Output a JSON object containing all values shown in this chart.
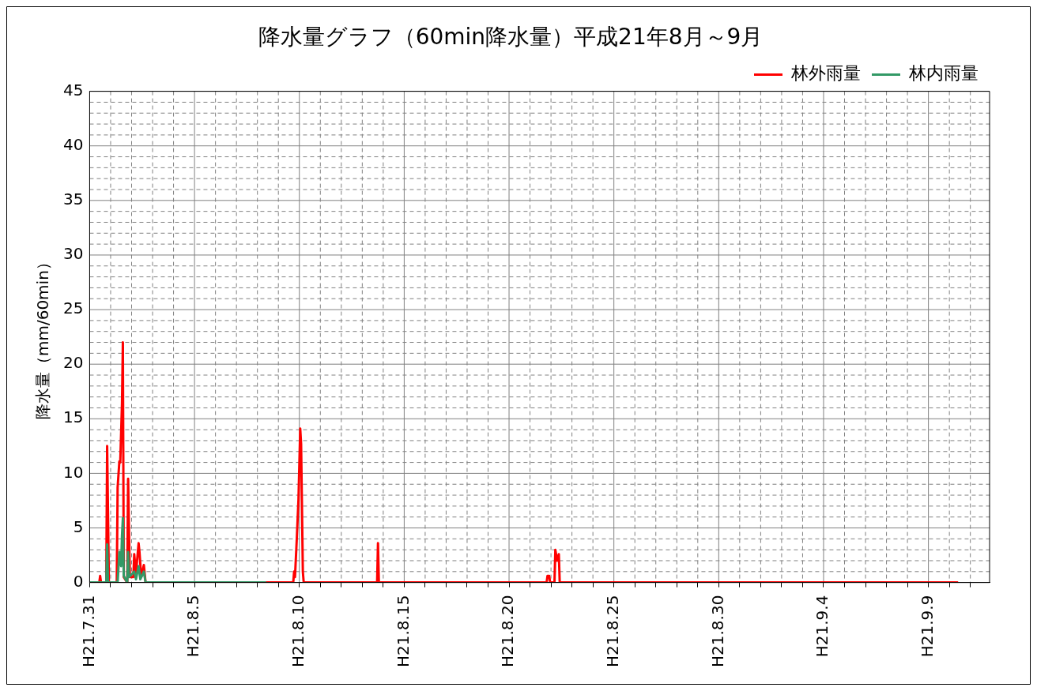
{
  "chart_data": {
    "type": "line",
    "title": "降水量グラフ（60min降水量）平成21年8月～9月",
    "ylabel": "降水量（mm/60min）",
    "xlim": [
      "--07-31T00:00",
      "--09-11T22:00"
    ],
    "xticks": [
      {
        "value": "--07-31",
        "label": "H21.7.31"
      },
      {
        "value": "--08-01",
        "label": null
      },
      {
        "value": "--08-02",
        "label": null
      },
      {
        "value": "--08-03",
        "label": null
      },
      {
        "value": "--08-04",
        "label": null
      },
      {
        "value": "--08-05",
        "label": "H21.8.5"
      },
      {
        "value": "--08-06",
        "label": null
      },
      {
        "value": "--08-07",
        "label": null
      },
      {
        "value": "--08-08",
        "label": null
      },
      {
        "value": "--08-09",
        "label": null
      },
      {
        "value": "--08-10",
        "label": "H21.8.10"
      },
      {
        "value": "--08-11",
        "label": null
      },
      {
        "value": "--08-12",
        "label": null
      },
      {
        "value": "--08-13",
        "label": null
      },
      {
        "value": "--08-14",
        "label": null
      },
      {
        "value": "--08-15",
        "label": "H21.8.15"
      },
      {
        "value": "--08-16",
        "label": null
      },
      {
        "value": "--08-17",
        "label": null
      },
      {
        "value": "--08-18",
        "label": null
      },
      {
        "value": "--08-19",
        "label": null
      },
      {
        "value": "--08-20",
        "label": "H21.8.20"
      },
      {
        "value": "--08-21",
        "label": null
      },
      {
        "value": "--08-22",
        "label": null
      },
      {
        "value": "--08-23",
        "label": null
      },
      {
        "value": "--08-24",
        "label": null
      },
      {
        "value": "--08-25",
        "label": "H21.8.25"
      },
      {
        "value": "--08-26",
        "label": null
      },
      {
        "value": "--08-27",
        "label": null
      },
      {
        "value": "--08-28",
        "label": null
      },
      {
        "value": "--08-29",
        "label": null
      },
      {
        "value": "--08-30",
        "label": "H21.8.30"
      },
      {
        "value": "--08-31",
        "label": null
      },
      {
        "value": "--09-01",
        "label": null
      },
      {
        "value": "--09-02",
        "label": null
      },
      {
        "value": "--09-03",
        "label": null
      },
      {
        "value": "--09-04",
        "label": "H21.9.4"
      },
      {
        "value": "--09-05",
        "label": null
      },
      {
        "value": "--09-06",
        "label": null
      },
      {
        "value": "--09-07",
        "label": null
      },
      {
        "value": "--09-08",
        "label": null
      },
      {
        "value": "--09-09",
        "label": "H21.9.9"
      },
      {
        "value": "--09-10",
        "label": null
      },
      {
        "value": "--09-11",
        "label": null
      }
    ],
    "ylim": [
      0,
      45
    ],
    "yticks": [
      0,
      {
        "value": 1,
        "label": null
      },
      {
        "value": 2,
        "label": null
      },
      {
        "value": 3,
        "label": null
      },
      {
        "value": 4,
        "label": null
      },
      5,
      {
        "value": 6,
        "label": null
      },
      {
        "value": 7,
        "label": null
      },
      {
        "value": 8,
        "label": null
      },
      {
        "value": 9,
        "label": null
      },
      10,
      {
        "value": 11,
        "label": null
      },
      {
        "value": 12,
        "label": null
      },
      {
        "value": 13,
        "label": null
      },
      {
        "value": 14,
        "label": null
      },
      15,
      {
        "value": 16,
        "label": null
      },
      {
        "value": 17,
        "label": null
      },
      {
        "value": 18,
        "label": null
      },
      {
        "value": 19,
        "label": null
      },
      20,
      {
        "value": 21,
        "label": null
      },
      {
        "value": 22,
        "label": null
      },
      {
        "value": 23,
        "label": null
      },
      {
        "value": 24,
        "label": null
      },
      25,
      {
        "value": 26,
        "label": null
      },
      {
        "value": 27,
        "label": null
      },
      {
        "value": 28,
        "label": null
      },
      {
        "value": 29,
        "label": null
      },
      30,
      {
        "value": 31,
        "label": null
      },
      {
        "value": 32,
        "label": null
      },
      {
        "value": 33,
        "label": null
      },
      {
        "value": 34,
        "label": null
      },
      35,
      {
        "value": 36,
        "label": null
      },
      {
        "value": 37,
        "label": null
      },
      {
        "value": 38,
        "label": null
      },
      {
        "value": 39,
        "label": null
      },
      40,
      {
        "value": 41,
        "label": null
      },
      {
        "value": 42,
        "label": null
      },
      {
        "value": 43,
        "label": null
      },
      {
        "value": 44,
        "label": null
      },
      45
    ],
    "grid": true,
    "legend": "top right",
    "marker": "none",
    "line_style": "solid",
    "series": [
      {
        "name": "林外雨量",
        "color": "#ff0000",
        "x": [
          "--07-31T00:00",
          "--07-31T11:00",
          "--07-31T12:00",
          "--07-31T13:00",
          "--07-31T19:00",
          "--07-31T20:00",
          "--07-31T21:00",
          "--07-31T22:00",
          "--08-01T07:00",
          "--08-01T08:00",
          "--08-01T10:00",
          "--08-01T11:00",
          "--08-01T13:00",
          "--08-01T14:00",
          "--08-01T15:00",
          "--08-01T19:00",
          "--08-01T20:00",
          "--08-01T21:00",
          "--08-01T22:00",
          "--08-02T02:00",
          "--08-02T03:00",
          "--08-02T05:00",
          "--08-02T08:00",
          "--08-02T09:00",
          "--08-02T11:00",
          "--08-02T14:00",
          "--08-02T16:00",
          "--08-09T17:00",
          "--08-09T18:00",
          "--08-09T19:00",
          "--08-09T21:00",
          "--08-09T23:00",
          "--08-10T01:00",
          "--08-10T02:00",
          "--08-10T04:00",
          "--08-10T05:00",
          "--08-13T17:00",
          "--08-13T18:00",
          "--08-13T19:00",
          "--08-21T19:00",
          "--08-21T20:00",
          "--08-21T22:00",
          "--08-21T23:00",
          "--08-22T04:00",
          "--08-22T05:00",
          "--08-22T07:00",
          "--08-22T09:00",
          "--08-22T10:00",
          "--09-10T10:00"
        ],
        "values": [
          0,
          0,
          0.6,
          0,
          0,
          12.5,
          6.4,
          0,
          0,
          8.7,
          11.1,
          11.0,
          16.4,
          22.0,
          0.5,
          0,
          9.5,
          4.9,
          0.5,
          0.5,
          2.6,
          0.8,
          3.6,
          2.8,
          0.5,
          1.6,
          0,
          0,
          1.0,
          0.5,
          3.9,
          7.6,
          14.1,
          12.7,
          1.0,
          0,
          0,
          3.6,
          0,
          0,
          0.6,
          0.6,
          0,
          0,
          3.0,
          2.0,
          2.6,
          0,
          0
        ]
      },
      {
        "name": "林内雨量",
        "color": "#339966",
        "x": [
          "--07-31T00:00",
          "--07-31T19:00",
          "--07-31T20:00",
          "--07-31T21:00",
          "--08-01T08:00",
          "--08-01T10:00",
          "--08-01T12:00",
          "--08-01T13:00",
          "--08-01T14:00",
          "--08-01T15:00",
          "--08-01T19:00",
          "--08-01T20:00",
          "--08-01T21:00",
          "--08-02T03:00",
          "--08-02T05:00",
          "--08-02T08:00",
          "--08-02T10:00",
          "--08-02T14:00",
          "--08-02T16:00",
          "--08-08T10:00"
        ],
        "values": [
          0,
          0,
          3.5,
          0,
          0,
          2.8,
          1.5,
          4.3,
          5.9,
          0.6,
          0,
          2.8,
          0.5,
          1.0,
          0.3,
          1.5,
          0.3,
          1.0,
          0,
          0
        ]
      }
    ]
  }
}
